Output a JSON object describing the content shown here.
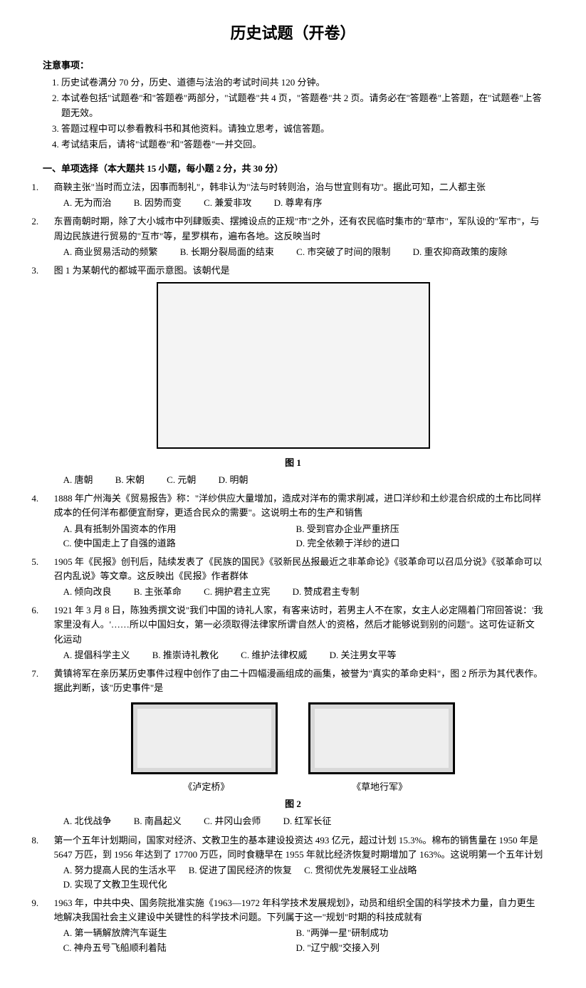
{
  "title": "历史试题（开卷）",
  "notice": {
    "header": "注意事项：",
    "items": [
      "历史试卷满分 70 分，历史、道德与法治的考试时间共 120 分钟。",
      "本试卷包括\"试题卷\"和\"答题卷\"两部分，\"试题卷\"共 4 页，\"答题卷\"共 2 页。请务必在\"答题卷\"上答题，在\"试题卷\"上答题无效。",
      "答题过程中可以参看教科书和其他资料。请独立思考，诚信答题。",
      "考试结束后，请将\"试题卷\"和\"答题卷\"一并交回。"
    ]
  },
  "section1": "一、单项选择（本大题共 15 小题，每小题 2 分，共 30 分）",
  "q1": {
    "stem": "商鞅主张\"当时而立法，因事而制礼\"，韩非认为\"法与时转则治，治与世宜则有功\"。据此可知，二人都主张",
    "A": "A. 无为而治",
    "B": "B. 因势而变",
    "C": "C. 兼爱非攻",
    "D": "D. 尊卑有序"
  },
  "q2": {
    "stem": "东晋南朝时期，除了大小城市中列肆贩卖、摆摊设点的正规\"市\"之外，还有农民临时集市的\"草市\"，军队设的\"军市\"，与周边民族进行贸易的\"互市\"等，星罗棋布，遍布各地。这反映当时",
    "A": "A. 商业贸易活动的频繁",
    "B": "B. 长期分裂局面的结束",
    "C": "C. 市突破了时间的限制",
    "D": "D. 重农抑商政策的废除"
  },
  "q3": {
    "stem": "图 1 为某朝代的都城平面示意图。该朝代是",
    "caption": "图 1",
    "A": "A. 唐朝",
    "B": "B. 宋朝",
    "C": "C. 元朝",
    "D": "D. 明朝"
  },
  "q4": {
    "stem": "1888 年广州海关《贸易报告》称：\"洋纱供应大量增加，造成对洋布的需求削减，进口洋纱和土纱混合织成的土布比同样成本的任何洋布都便宜耐穿，更适合民众的需要\"。这说明土布的生产和销售",
    "A": "A. 具有抵制外国资本的作用",
    "B": "B. 受到官办企业严重挤压",
    "C": "C. 使中国走上了自强的道路",
    "D": "D. 完全依赖于洋纱的进口"
  },
  "q5": {
    "stem": "1905 年《民报》创刊后，陆续发表了《民族的国民》《驳新民丛报最近之非革命论》《驳革命可以召瓜分说》《驳革命可以召内乱说》等文章。这反映出《民报》作者群体",
    "A": "A. 倾向改良",
    "B": "B. 主张革命",
    "C": "C. 拥护君主立宪",
    "D": "D. 赞成君主专制"
  },
  "q6": {
    "stem": "1921 年 3 月 8 日，陈独秀撰文说\"我们中国的诗礼人家，有客来访时，若男主人不在家，女主人必定隔着门帘回答说：'我家里没有人。'……所以中国妇女，第一必须取得法律家所谓'自然人'的资格，然后才能够说到别的问题\"。这可佐证新文化运动",
    "A": "A. 提倡科学主义",
    "B": "B. 推崇诗礼教化",
    "C": "C. 维护法律权威",
    "D": "D. 关注男女平等"
  },
  "q7": {
    "stem": "黄镇将军在亲历某历史事件过程中创作了由二十四幅漫画组成的画集，被誉为\"真实的革命史料\"，图 2 所示为其代表作。据此判断，该\"历史事件\"是",
    "p1": "《泸定桥》",
    "p2": "《草地行军》",
    "caption": "图 2",
    "A": "A. 北伐战争",
    "B": "B. 南昌起义",
    "C": "C. 井冈山会师",
    "D": "D. 红军长征"
  },
  "q8": {
    "stem": "第一个五年计划期间，国家对经济、文教卫生的基本建设投资达 493 亿元，超过计划 15.3%。棉布的销售量在 1950 年是 5647 万匹，到 1956 年达到了 17700 万匹，同时食糖早在 1955 年就比经济恢复时期增加了 163%。这说明第一个五年计划",
    "A": "A. 努力提高人民的生活水平",
    "B": "B. 促进了国民经济的恢复",
    "C": "C. 贯彻优先发展轻工业战略",
    "D": "D. 实现了文教卫生现代化"
  },
  "q9": {
    "stem": "1963 年，中共中央、国务院批准实施《1963—1972 年科学技术发展规划》，动员和组织全国的科学技术力量，自力更生地解决我国社会主义建设中关键性的科学技术问题。下列属于这一\"规划\"时期的科技成就有",
    "A": "A. 第一辆解放牌汽车诞生",
    "B": "B. \"两弹一星\"研制成功",
    "C": "C. 神舟五号飞船顺利着陆",
    "D": "D. \"辽宁舰\"交接入列"
  }
}
